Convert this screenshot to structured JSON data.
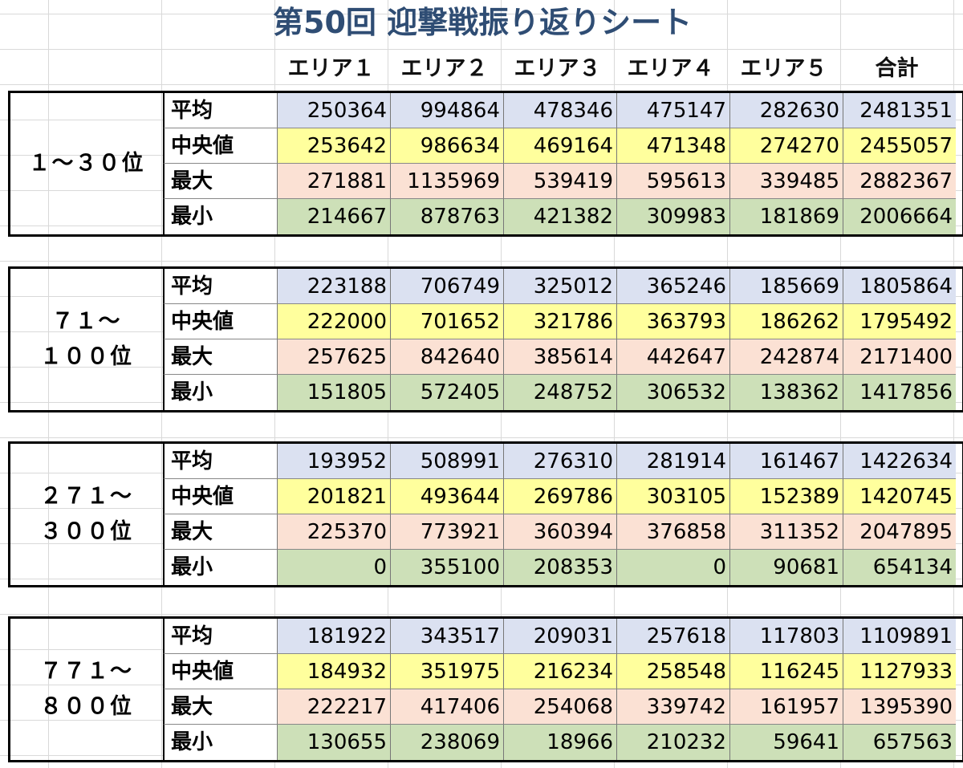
{
  "title": "第50回 迎撃戦振り返りシート",
  "headers": [
    "エリア１",
    "エリア２",
    "エリア３",
    "エリア４",
    "エリア５",
    "合計"
  ],
  "blocks": [
    {
      "label": "１～３０位",
      "rows": [
        {
          "label": "平均",
          "values": [
            "250364",
            "994864",
            "478346",
            "475147",
            "282630",
            "2481351"
          ]
        },
        {
          "label": "中央値",
          "values": [
            "253642",
            "986634",
            "469164",
            "471348",
            "274270",
            "2455057"
          ]
        },
        {
          "label": "最大",
          "values": [
            "271881",
            "1135969",
            "539419",
            "595613",
            "339485",
            "2882367"
          ]
        },
        {
          "label": "最小",
          "values": [
            "214667",
            "878763",
            "421382",
            "309983",
            "181869",
            "2006664"
          ]
        }
      ]
    },
    {
      "label": "７１～\n１００位",
      "rows": [
        {
          "label": "平均",
          "values": [
            "223188",
            "706749",
            "325012",
            "365246",
            "185669",
            "1805864"
          ]
        },
        {
          "label": "中央値",
          "values": [
            "222000",
            "701652",
            "321786",
            "363793",
            "186262",
            "1795492"
          ]
        },
        {
          "label": "最大",
          "values": [
            "257625",
            "842640",
            "385614",
            "442647",
            "242874",
            "2171400"
          ]
        },
        {
          "label": "最小",
          "values": [
            "151805",
            "572405",
            "248752",
            "306532",
            "138362",
            "1417856"
          ]
        }
      ]
    },
    {
      "label": "２７１～\n３００位",
      "rows": [
        {
          "label": "平均",
          "values": [
            "193952",
            "508991",
            "276310",
            "281914",
            "161467",
            "1422634"
          ]
        },
        {
          "label": "中央値",
          "values": [
            "201821",
            "493644",
            "269786",
            "303105",
            "152389",
            "1420745"
          ]
        },
        {
          "label": "最大",
          "values": [
            "225370",
            "773921",
            "360394",
            "376858",
            "311352",
            "2047895"
          ]
        },
        {
          "label": "最小",
          "values": [
            "0",
            "355100",
            "208353",
            "0",
            "90681",
            "654134"
          ]
        }
      ]
    },
    {
      "label": "７７１～\n８００位",
      "rows": [
        {
          "label": "平均",
          "values": [
            "181922",
            "343517",
            "209031",
            "257618",
            "117803",
            "1109891"
          ]
        },
        {
          "label": "中央値",
          "values": [
            "184932",
            "351975",
            "216234",
            "258548",
            "116245",
            "1127933"
          ]
        },
        {
          "label": "最大",
          "values": [
            "222217",
            "417406",
            "254068",
            "339742",
            "161957",
            "1395390"
          ]
        },
        {
          "label": "最小",
          "values": [
            "130655",
            "238069",
            "18966",
            "210232",
            "59641",
            "657563"
          ]
        }
      ]
    }
  ]
}
